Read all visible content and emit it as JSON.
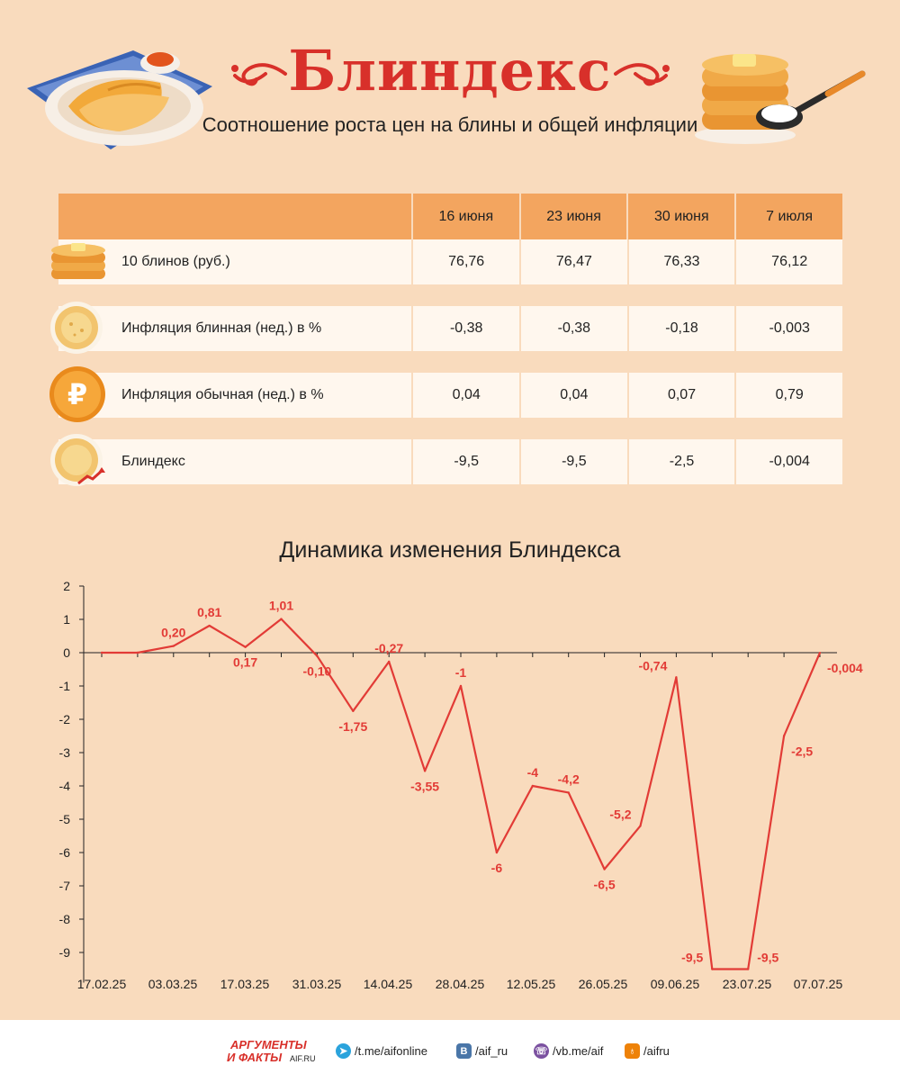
{
  "header": {
    "title": "Блиндекс",
    "subtitle": "Соотношение роста цен на блины и общей инфляции"
  },
  "table": {
    "columns": [
      "16 июня",
      "23 июня",
      "30 июня",
      "7 июля"
    ],
    "rows": [
      {
        "label": "10 блинов (руб.)",
        "icon": "pancake-stack-icon",
        "values": [
          "76,76",
          "76,47",
          "76,33",
          "76,12"
        ]
      },
      {
        "label": "Инфляция блинная (нед.) в %",
        "icon": "pancake-icon",
        "values": [
          "-0,38",
          "-0,38",
          "-0,18",
          "-0,003"
        ]
      },
      {
        "label": "Инфляция обычная (нед.) в %",
        "icon": "ruble-coin-icon",
        "values": [
          "0,04",
          "0,04",
          "0,07",
          "0,79"
        ]
      },
      {
        "label": "Блиндекс",
        "icon": "pancake-growth-icon",
        "values": [
          "-9,5",
          "-9,5",
          "-2,5",
          "-0,004"
        ]
      }
    ]
  },
  "chart_data": {
    "type": "line",
    "title": "Динамика изменения Блиндекса",
    "xlabel": "",
    "ylabel": "",
    "ylim": [
      -9.5,
      2
    ],
    "yticks": [
      "2",
      "1",
      "0",
      "-1",
      "-2",
      "-3",
      "-4",
      "-5",
      "-6",
      "-7",
      "-8",
      "-9"
    ],
    "xticks": [
      "17.02.25",
      "03.03.25",
      "17.03.25",
      "31.03.25",
      "14.04.25",
      "28.04.25",
      "12.05.25",
      "26.05.25",
      "09.06.25",
      "23.07.25",
      "07.07.25"
    ],
    "series": [
      {
        "values": [
          0,
          0,
          0.2,
          0.81,
          0.17,
          1.01,
          -0.1,
          -1.75,
          -0.27,
          -3.55,
          -1,
          -6,
          -4,
          -4.2,
          -6.5,
          -5.2,
          -0.74,
          -9.5,
          -9.5,
          -2.5,
          -0.004
        ]
      }
    ],
    "data_labels": [
      {
        "i": 2,
        "text": "0,20",
        "pos": "above"
      },
      {
        "i": 3,
        "text": "0,81",
        "pos": "above"
      },
      {
        "i": 4,
        "text": "0,17",
        "pos": "below"
      },
      {
        "i": 5,
        "text": "1,01",
        "pos": "above"
      },
      {
        "i": 6,
        "text": "-0,10",
        "pos": "below"
      },
      {
        "i": 7,
        "text": "-1,75",
        "pos": "below"
      },
      {
        "i": 8,
        "text": "-0,27",
        "pos": "above"
      },
      {
        "i": 9,
        "text": "-3,55",
        "pos": "below"
      },
      {
        "i": 10,
        "text": "-1",
        "pos": "above"
      },
      {
        "i": 11,
        "text": "-6",
        "pos": "below"
      },
      {
        "i": 12,
        "text": "-4",
        "pos": "above"
      },
      {
        "i": 13,
        "text": "-4,2",
        "pos": "above"
      },
      {
        "i": 14,
        "text": "-6,5",
        "pos": "below"
      },
      {
        "i": 15,
        "text": "-5,2",
        "pos": "aboveleft"
      },
      {
        "i": 16,
        "text": "-0,74",
        "pos": "aboveleft"
      },
      {
        "i": 17,
        "text": "-9,5",
        "pos": "aboveleft"
      },
      {
        "i": 18,
        "text": "-9,5",
        "pos": "aboveright"
      },
      {
        "i": 19,
        "text": "-2,5",
        "pos": "belowright"
      },
      {
        "i": 20,
        "text": "-0,004",
        "pos": "belowright"
      }
    ],
    "line_color": "#e23b36",
    "grid": false
  },
  "footer": {
    "brand": "АРГУМЕНТЫ И ФАКТЫ",
    "brand_site": "AIF.RU",
    "links": [
      {
        "icon": "telegram-icon",
        "text": "/t.me/aifonline",
        "color": "#2aa3dc"
      },
      {
        "icon": "vk-icon",
        "text": "/aif_ru",
        "color": "#4a76a8"
      },
      {
        "icon": "viber-icon",
        "text": "/vb.me/aif",
        "color": "#7b51a0"
      },
      {
        "icon": "odnoklassniki-icon",
        "text": "/aifru",
        "color": "#ee8208"
      }
    ]
  },
  "colors": {
    "background": "#f9dbbd",
    "accent": "#d8302a",
    "table_header": "#f3a55f"
  }
}
